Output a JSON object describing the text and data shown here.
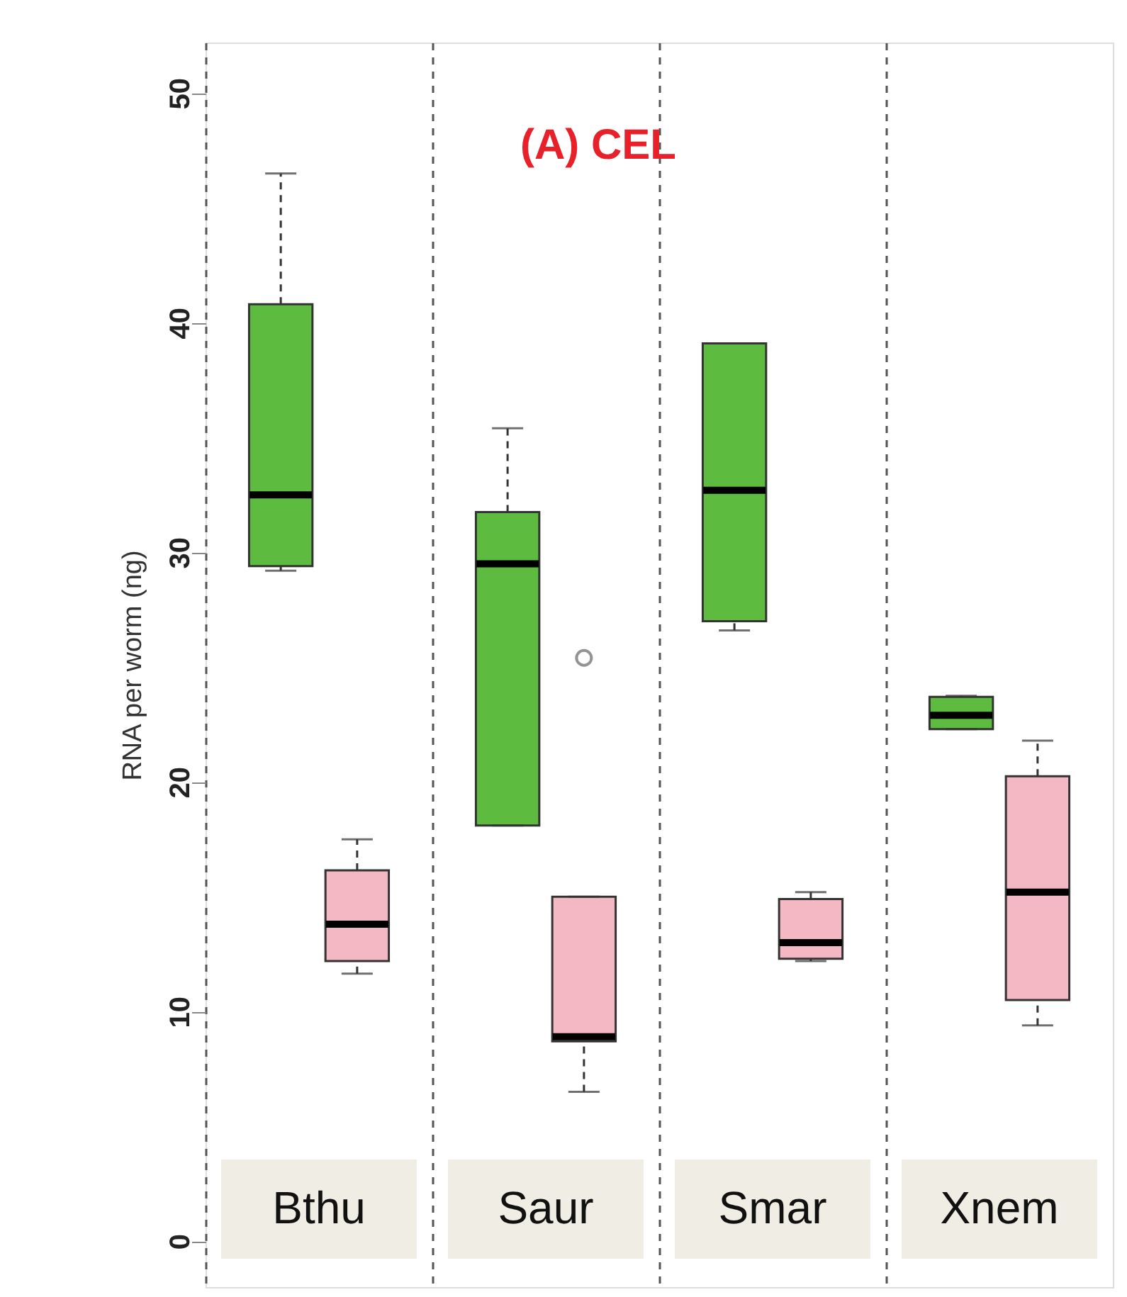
{
  "chart_data": {
    "type": "box",
    "title": "(A) CEL",
    "ylabel": "RNA per worm (ng)",
    "categories": [
      "Bthu",
      "Saur",
      "Smar",
      "Xnem"
    ],
    "series": [
      {
        "color": "#5dbb3f",
        "boxes": [
          {
            "low": 29.2,
            "q1": 29.4,
            "median": 32.5,
            "q3": 40.8,
            "high": 46.5
          },
          {
            "low": 18.1,
            "q1": 18.1,
            "median": 29.5,
            "q3": 31.75,
            "high": 35.4
          },
          {
            "low": 26.6,
            "q1": 27.0,
            "median": 32.7,
            "q3": 39.1,
            "high": 39.1
          },
          {
            "low": 22.3,
            "q1": 22.3,
            "median": 22.9,
            "q3": 23.7,
            "high": 23.75
          }
        ]
      },
      {
        "color": "#f4b8c5",
        "boxes": [
          {
            "low": 11.65,
            "q1": 12.2,
            "median": 13.8,
            "q3": 16.15,
            "high": 17.5
          },
          {
            "low": 6.5,
            "q1": 8.7,
            "median": 8.9,
            "q3": 15.0,
            "high": 15.0,
            "outliers": [
              25.4
            ]
          },
          {
            "low": 12.2,
            "q1": 12.3,
            "median": 13.0,
            "q3": 14.9,
            "high": 15.2
          },
          {
            "low": 9.4,
            "q1": 10.5,
            "median": 15.2,
            "q3": 20.25,
            "high": 21.8
          }
        ]
      }
    ],
    "ylim": [
      -2,
      52.2
    ],
    "yticks": [
      0,
      10,
      20,
      30,
      40,
      50
    ],
    "grid": "x",
    "tick_labels": "y"
  }
}
